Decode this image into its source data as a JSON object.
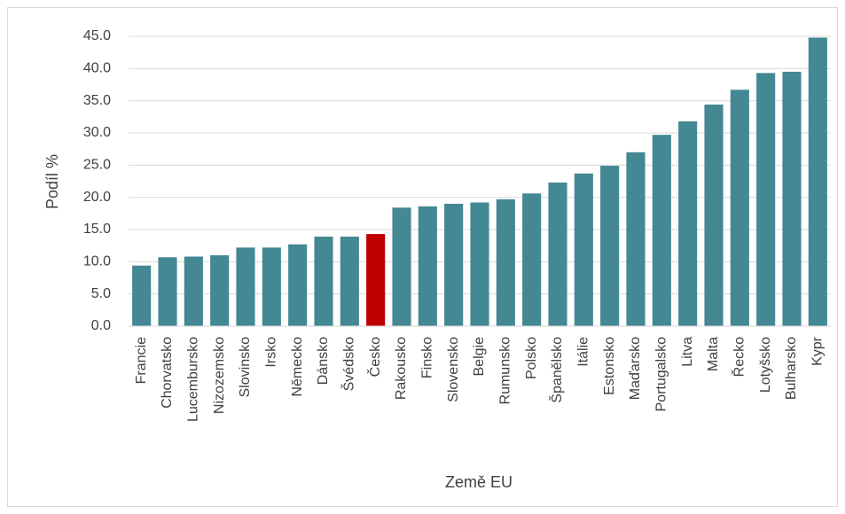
{
  "chart_data": {
    "type": "bar",
    "x_label": "Země EU",
    "y_label": "Podíl %",
    "categories": [
      "Francie",
      "Chorvatsko",
      "Lucembursko",
      "Nizozemsko",
      "Slovinsko",
      "Irsko",
      "Německo",
      "Dánsko",
      "Švédsko",
      "Česko",
      "Rakousko",
      "Finsko",
      "Slovensko",
      "Belgie",
      "Rumunsko",
      "Polsko",
      "Španělsko",
      "Itálie",
      "Estonsko",
      "Maďarsko",
      "Portugalsko",
      "Litva",
      "Malta",
      "Řecko",
      "Lotyšsko",
      "Bulharsko",
      "Kypr"
    ],
    "values": [
      9.4,
      10.7,
      10.8,
      11.0,
      12.2,
      12.2,
      12.7,
      13.9,
      13.9,
      14.3,
      18.4,
      18.6,
      19.0,
      19.2,
      19.7,
      20.6,
      22.3,
      23.7,
      24.9,
      27.0,
      29.7,
      31.8,
      34.4,
      36.7,
      39.3,
      39.5,
      44.8
    ],
    "colors": [
      "#438892",
      "#438892",
      "#438892",
      "#438892",
      "#438892",
      "#438892",
      "#438892",
      "#438892",
      "#438892",
      "#c00000",
      "#438892",
      "#438892",
      "#438892",
      "#438892",
      "#438892",
      "#438892",
      "#438892",
      "#438892",
      "#438892",
      "#438892",
      "#438892",
      "#438892",
      "#438892",
      "#438892",
      "#438892",
      "#438892",
      "#438892"
    ],
    "ylim": [
      0,
      45
    ],
    "yticks": [
      {
        "value": 0,
        "label": "0.0"
      },
      {
        "value": 5,
        "label": "5.0"
      },
      {
        "value": 10,
        "label": "10.0"
      },
      {
        "value": 15,
        "label": "15.0"
      },
      {
        "value": 20,
        "label": "20.0"
      },
      {
        "value": 25,
        "label": "25.0"
      },
      {
        "value": 30,
        "label": "30.0"
      },
      {
        "value": 35,
        "label": "35.0"
      },
      {
        "value": 40,
        "label": "40.0"
      },
      {
        "value": 45,
        "label": "45.0"
      }
    ],
    "grid": true
  }
}
